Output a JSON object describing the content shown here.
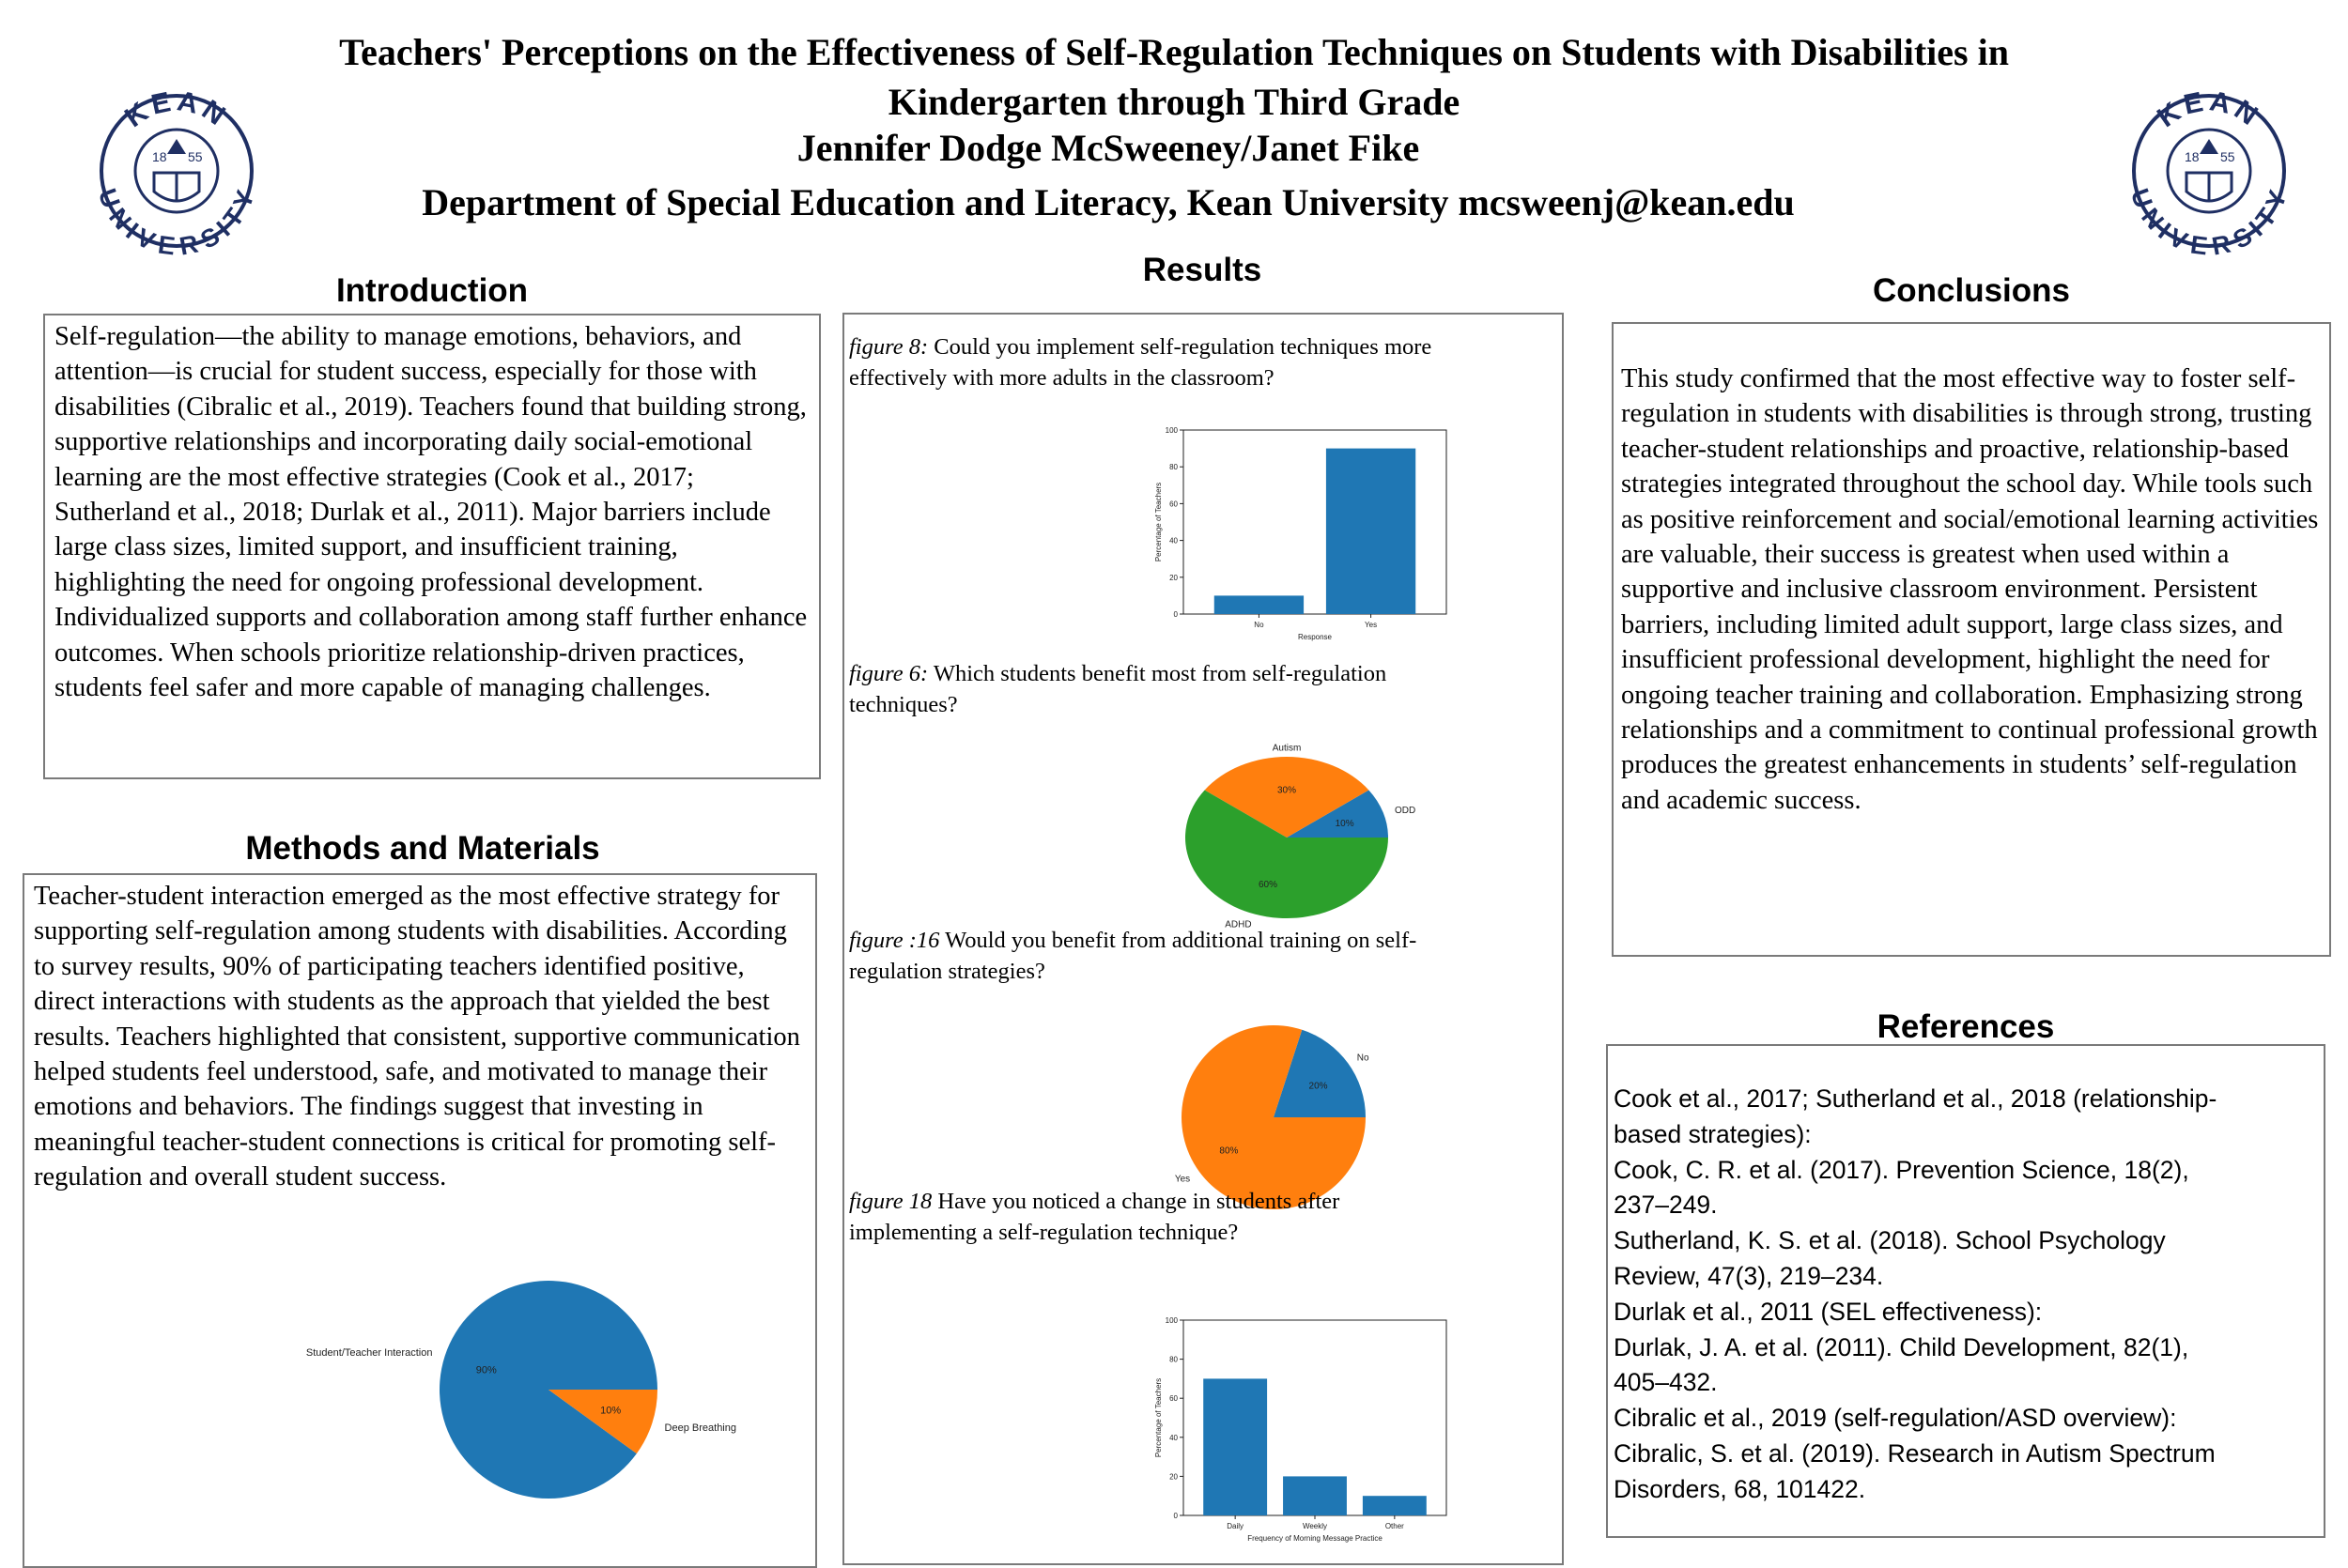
{
  "header": {
    "title_line1": "Teachers' Perceptions on the Effectiveness of Self-Regulation Techniques on Students with Disabilities in",
    "title_line2": "Kindergarten through Third Grade",
    "authors": "Jennifer Dodge McSweeney/Janet Fike",
    "affiliation": "Department of Special Education and Literacy, Kean University mcsweenj@kean.edu"
  },
  "logo": {
    "top_text": "KEAN",
    "bottom_text": "UNIVERSITY",
    "year_left": "18",
    "year_right": "55",
    "color": "#1f2f63"
  },
  "introduction": {
    "heading": "Introduction",
    "text": "Self-regulation—the ability to manage emotions, behaviors, and attention—is crucial for student success, especially for those with disabilities (Cibralic et al., 2019). Teachers found that building strong, supportive relationships and incorporating daily social-emotional learning are the most effective strategies (Cook et al., 2017; Sutherland et al., 2018; Durlak et al., 2011). Major barriers include large class sizes, limited support, and insufficient training, highlighting the need for ongoing professional development. Individualized supports and collaboration among staff further enhance outcomes. When schools prioritize relationship-driven practices, students feel safer and more capable of managing challenges."
  },
  "methods": {
    "heading": "Methods and Materials",
    "text": "Teacher-student interaction emerged as the most effective strategy for supporting self-regulation among students with disabilities. According to survey results, 90% of participating teachers identified positive, direct interactions with students as the approach that yielded the best results. Teachers highlighted that consistent, supportive communication helped students feel understood, safe, and motivated to manage their emotions and behaviors. The findings suggest that investing in meaningful teacher-student connections is critical for promoting self-regulation and overall student success."
  },
  "results": {
    "heading": "Results",
    "fig8": {
      "label": "figure 8:",
      "line1": " Could you implement self-regulation techniques more",
      "line2": "effectively with more adults in the classroom?"
    },
    "fig6": {
      "label": "figure 6:",
      "line1": " Which students benefit most from self-regulation",
      "line2": "techniques?"
    },
    "fig16": {
      "label": "figure :16",
      "line1": " Would you benefit from additional training on self-",
      "line2": "regulation strategies?"
    },
    "fig18": {
      "label": "figure 18",
      "line1": " Have you noticed a change in students after",
      "line2": "implementing a self-regulation technique?"
    }
  },
  "conclusions": {
    "heading": "Conclusions",
    "text": "This study confirmed that the most effective way to foster self-regulation in students with disabilities is through strong, trusting teacher-student relationships and proactive, relationship-based strategies integrated throughout the school day. While tools such as positive reinforcement and social/emotional learning activities are valuable, their success is greatest when used within a supportive and inclusive classroom environment. Persistent barriers, including limited adult support, large class sizes, and insufficient professional development, highlight the need for ongoing teacher training and collaboration. Emphasizing strong relationships and a commitment to continual professional growth produces the greatest enhancements in students’ self-regulation and academic success."
  },
  "references": {
    "heading": "References",
    "lines": [
      "Cook et al., 2017; Sutherland et al., 2018 (relationship-",
      "based strategies):",
      " Cook, C. R. et al. (2017). Prevention Science, 18(2),",
      "237–249.",
      " Sutherland, K. S. et al. (2018). School Psychology",
      "Review, 47(3), 219–234.",
      "Durlak et al., 2011 (SEL effectiveness):",
      " Durlak, J. A. et al. (2011). Child Development, 82(1),",
      "405–432.",
      "Cibralic et al., 2019 (self-regulation/ASD overview):",
      " Cibralic, S. et al. (2019). Research in Autism Spectrum",
      "Disorders, 68, 101422."
    ]
  },
  "colors": {
    "blue": "#1f77b4",
    "orange": "#ff7f0e",
    "green": "#2ca02c"
  },
  "chart_data": [
    {
      "id": "methods-pie",
      "type": "pie",
      "categories": [
        "Student/Teacher Interaction",
        "Deep Breathing"
      ],
      "values": [
        90,
        10
      ],
      "value_labels": [
        "90%",
        "10%"
      ],
      "colors": [
        "#1f77b4",
        "#ff7f0e"
      ]
    },
    {
      "id": "fig8",
      "type": "bar",
      "categories": [
        "No",
        "Yes"
      ],
      "values": [
        10,
        90
      ],
      "xlabel": "Response",
      "ylabel": "Percentage of Teachers",
      "ylim": [
        0,
        100
      ],
      "yticks": [
        "0",
        "20",
        "40",
        "60",
        "80",
        "100"
      ],
      "color": "#1f77b4"
    },
    {
      "id": "fig6",
      "type": "pie",
      "categories": [
        "ODD",
        "Autism",
        "ADHD"
      ],
      "values": [
        10,
        30,
        60
      ],
      "value_labels": [
        "10%",
        "30%",
        "60%"
      ],
      "colors": [
        "#1f77b4",
        "#ff7f0e",
        "#2ca02c"
      ]
    },
    {
      "id": "fig16",
      "type": "pie",
      "categories": [
        "No",
        "Yes"
      ],
      "values": [
        20,
        80
      ],
      "value_labels": [
        "20%",
        "80%"
      ],
      "colors": [
        "#1f77b4",
        "#ff7f0e"
      ]
    },
    {
      "id": "fig18",
      "type": "bar",
      "categories": [
        "Daily",
        "Weekly",
        "Other"
      ],
      "values": [
        70,
        20,
        10
      ],
      "xlabel": "Frequency of Morning Message Practice",
      "ylabel": "Percentage of Teachers",
      "ylim": [
        0,
        100
      ],
      "yticks": [
        "0",
        "20",
        "40",
        "60",
        "80",
        "100"
      ],
      "color": "#1f77b4"
    }
  ]
}
